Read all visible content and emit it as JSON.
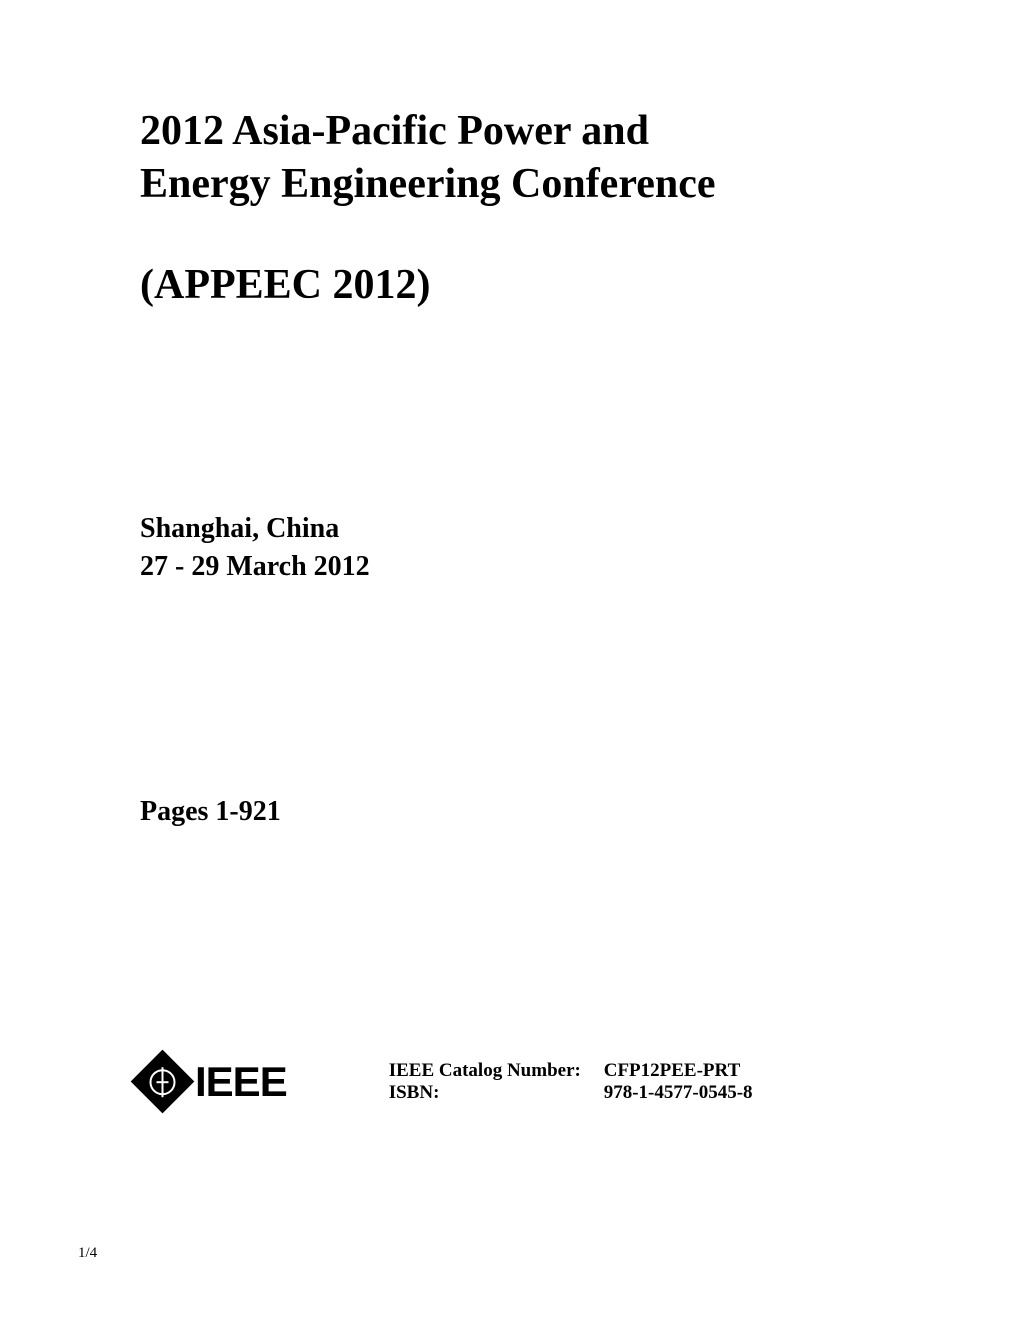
{
  "title": {
    "line1": "2012 Asia-Pacific Power and",
    "line2": "Energy Engineering Conference"
  },
  "acronym": "(APPEEC 2012)",
  "location": "Shanghai, China",
  "dates": "27 - 29 March 2012",
  "pages": "Pages 1-921",
  "logo": {
    "text": "IEEE"
  },
  "catalog": {
    "catalog_label": "IEEE Catalog Number:",
    "catalog_value": "CFP12PEE-PRT",
    "isbn_label": "ISBN:",
    "isbn_value": "978-1-4577-0545-8"
  },
  "page_number": "1/4",
  "colors": {
    "background": "#ffffff",
    "text": "#000000"
  },
  "typography": {
    "title_fontsize": 42,
    "subtitle_fontsize": 28,
    "catalog_fontsize": 19,
    "pagenum_fontsize": 15,
    "font_family": "Times New Roman"
  }
}
